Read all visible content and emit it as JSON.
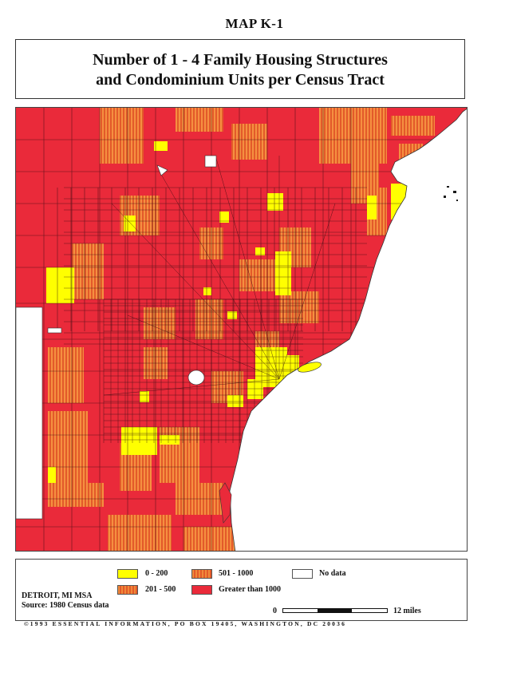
{
  "header": {
    "map_id": "MAP K-1"
  },
  "title": {
    "line1": "Number of 1 - 4 Family Housing Structures",
    "line2": "and Condominium Units per Census Tract"
  },
  "legend": {
    "items": [
      {
        "label": "0 - 200",
        "color": "#ffff00"
      },
      {
        "label": "201 - 500",
        "color": "#f08a3a"
      },
      {
        "label": "501 - 1000",
        "color": "#e35a2a"
      },
      {
        "label": "Greater than 1000",
        "color": "#ea2a3a"
      },
      {
        "label": "No data",
        "color": "#ffffff"
      }
    ]
  },
  "footer": {
    "region": "DETROIT, MI MSA",
    "source": "Source: 1980 Census data",
    "scale_start": "0",
    "scale_end": "12 miles",
    "copyright": "©1993 ESSENTIAL INFORMATION, PO BOX 19405, WASHINGTON, DC 20036"
  },
  "map": {
    "category_colors": {
      "yellow": "#ffff00",
      "orange": "#f08a3a",
      "red": "#ea2a3a",
      "nodata": "#ffffff",
      "water": "#ffffff"
    }
  }
}
